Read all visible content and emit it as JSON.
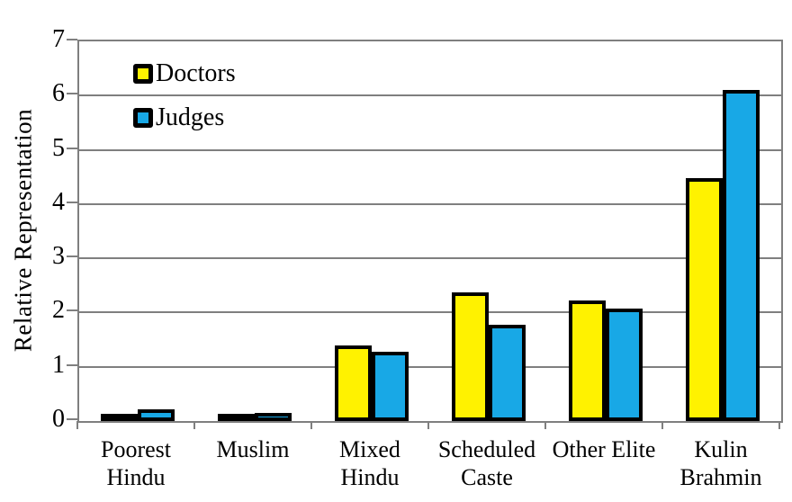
{
  "chart_data": {
    "type": "bar",
    "title": "",
    "xlabel": "",
    "ylabel": "Relative Representation",
    "ylim": [
      0,
      7
    ],
    "yticks": [
      0,
      1,
      2,
      3,
      4,
      5,
      6,
      7
    ],
    "grid": true,
    "legend_position": "top-left-inside",
    "legend_entries": [
      "Doctors",
      "Judges"
    ],
    "categories": [
      "Poorest Hindu",
      "Muslim",
      "Mixed Hindu",
      "Scheduled Caste",
      "Other Elite",
      "Kulin Brahmin"
    ],
    "category_label_lines": [
      [
        "Poorest",
        "Hindu"
      ],
      [
        "Muslim"
      ],
      [
        "Mixed",
        "Hindu"
      ],
      [
        "Scheduled",
        "Caste"
      ],
      [
        "Other Elite"
      ],
      [
        "Kulin",
        "Brahmin"
      ]
    ],
    "series": [
      {
        "name": "Doctors",
        "color": "#FFF200",
        "values": [
          0.08,
          0.12,
          1.4,
          2.38,
          2.22,
          4.48
        ]
      },
      {
        "name": "Judges",
        "color": "#18A8E6",
        "values": [
          0.21,
          0.15,
          1.27,
          1.77,
          2.08,
          6.1
        ]
      }
    ],
    "colors": {
      "bar_border": "#000000",
      "gridline": "#7f7f7f",
      "text": "#000000",
      "background": "#ffffff"
    }
  }
}
